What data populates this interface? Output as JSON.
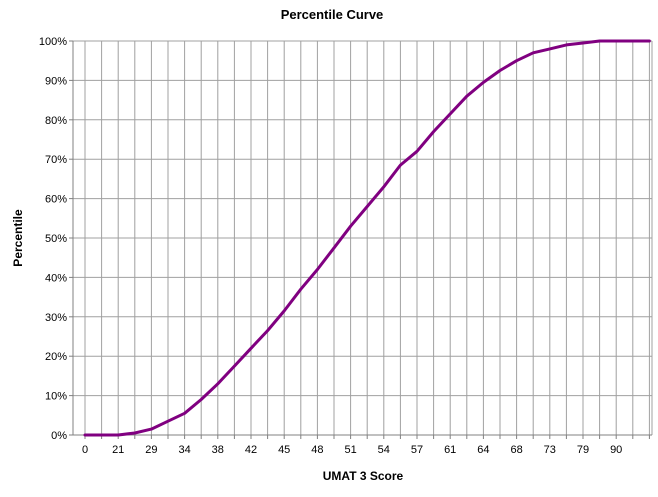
{
  "chart_data": {
    "type": "line",
    "title": "Percentile Curve",
    "xlabel": "UMAT 3 Score",
    "ylabel": "Percentile",
    "x_tick_labels": [
      "0",
      "21",
      "29",
      "34",
      "38",
      "42",
      "45",
      "48",
      "51",
      "54",
      "57",
      "61",
      "64",
      "68",
      "73",
      "79",
      "90"
    ],
    "y_ticks": [
      0,
      10,
      20,
      30,
      40,
      50,
      60,
      70,
      80,
      90,
      100
    ],
    "y_tick_labels": [
      "0%",
      "10%",
      "20%",
      "30%",
      "40%",
      "50%",
      "60%",
      "70%",
      "80%",
      "90%",
      "100%"
    ],
    "ylim": [
      0,
      100
    ],
    "grid": true,
    "legend": "none",
    "series": [
      {
        "color": "#800080",
        "points": [
          [
            0,
            0
          ],
          [
            1,
            0
          ],
          [
            2,
            0
          ],
          [
            3,
            0.5
          ],
          [
            4,
            1.5
          ],
          [
            5,
            3.5
          ],
          [
            6,
            5.5
          ],
          [
            7,
            9
          ],
          [
            8,
            13
          ],
          [
            9,
            17.5
          ],
          [
            10,
            22
          ],
          [
            11,
            26.5
          ],
          [
            12,
            31.5
          ],
          [
            13,
            37
          ],
          [
            14,
            42
          ],
          [
            15,
            47.5
          ],
          [
            16,
            53
          ],
          [
            17,
            58
          ],
          [
            18,
            63
          ],
          [
            19,
            68.5
          ],
          [
            20,
            72
          ],
          [
            21,
            77
          ],
          [
            22,
            81.5
          ],
          [
            23,
            86
          ],
          [
            24,
            89.5
          ],
          [
            25,
            92.5
          ],
          [
            26,
            95
          ],
          [
            27,
            97
          ],
          [
            28,
            98
          ],
          [
            29,
            99
          ],
          [
            30,
            99.5
          ],
          [
            31,
            100
          ],
          [
            32,
            100
          ],
          [
            33,
            100
          ],
          [
            34,
            100
          ]
        ]
      }
    ],
    "axis_line_color": "#808080",
    "grid_color": "#a0a0a0"
  }
}
